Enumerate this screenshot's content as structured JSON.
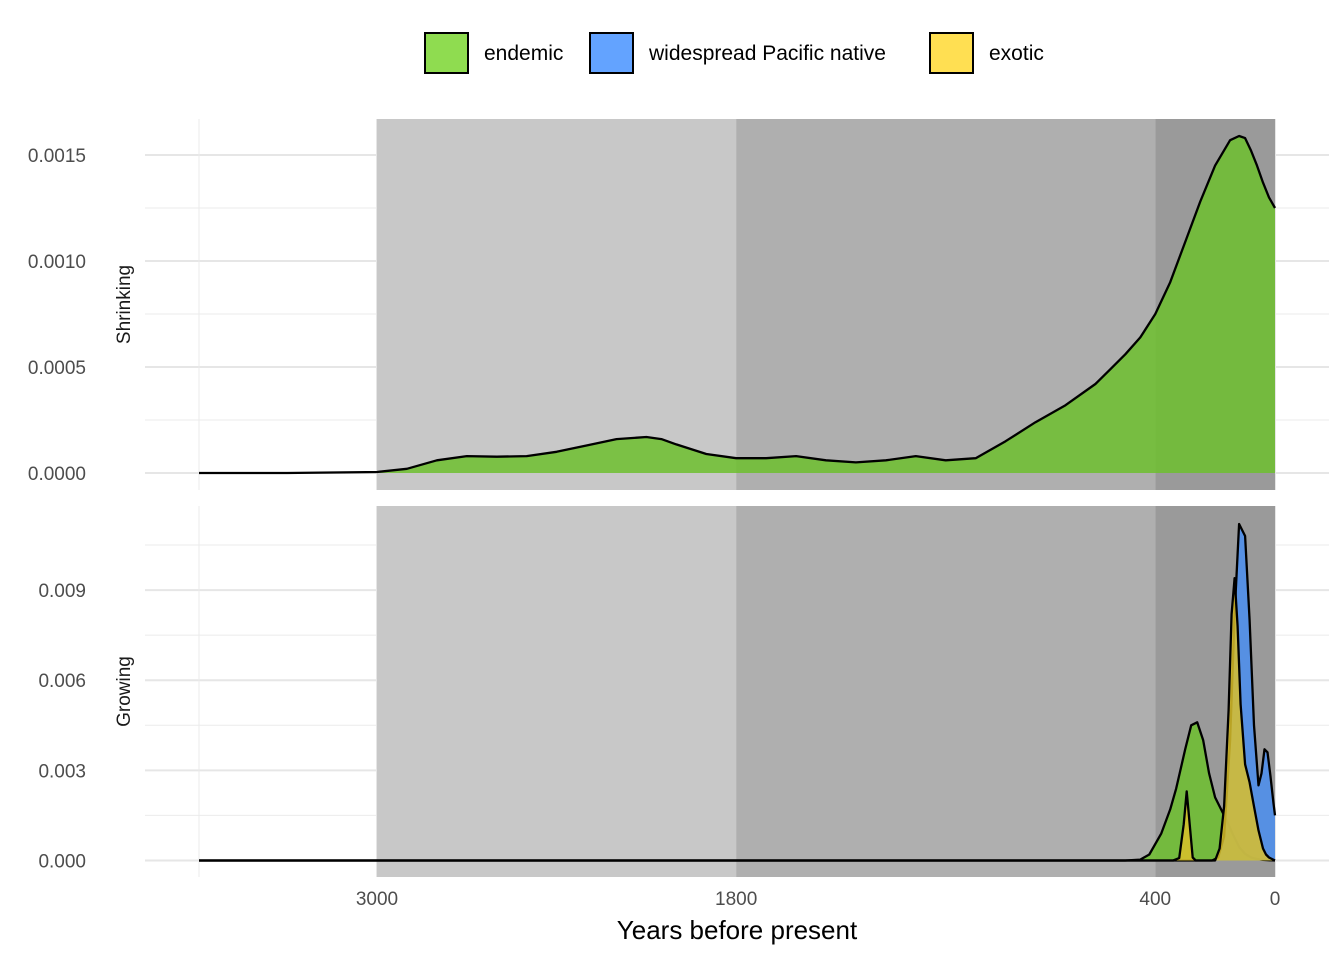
{
  "chart_data": {
    "type": "area",
    "subtype": "density",
    "xlabel": "Years before present",
    "x_reversed": true,
    "xlim": [
      3500,
      0
    ],
    "x_ticks": [
      3000,
      1800,
      400,
      0
    ],
    "grid": true,
    "legend_position": "top",
    "legend": [
      {
        "name": "endemic",
        "color": "#8fdc50"
      },
      {
        "name": "widespread Pacific native",
        "color": "#63a3ff"
      },
      {
        "name": "exotic",
        "color": "#ffdf52"
      }
    ],
    "background_bands": [
      {
        "from": 3000,
        "to": 1800,
        "color": "#c8c8c8"
      },
      {
        "from": 1800,
        "to": 400,
        "color": "#afafaf"
      },
      {
        "from": 400,
        "to": 0,
        "color": "#9a9a9a"
      }
    ],
    "panels": [
      {
        "label": "Shrinking",
        "ylim": [
          -8e-05,
          0.00167
        ],
        "y_ticks": [
          0,
          0.0005,
          0.001,
          0.0015
        ],
        "y_tick_labels": [
          "0.0000",
          "0.0005",
          "0.0010",
          "0.0015"
        ],
        "series": [
          {
            "name": "endemic",
            "color": "#6dbf2e",
            "x": [
              3600,
              3300,
              3000,
              2900,
              2800,
              2700,
              2600,
              2500,
              2400,
              2300,
              2200,
              2100,
              2050,
              2000,
              1900,
              1800,
              1700,
              1600,
              1500,
              1400,
              1300,
              1200,
              1100,
              1000,
              900,
              800,
              700,
              600,
              550,
              500,
              450,
              400,
              350,
              300,
              250,
              200,
              150,
              120,
              100,
              80,
              60,
              40,
              20,
              0
            ],
            "y": [
              0,
              0,
              5e-06,
              2e-05,
              6e-05,
              8e-05,
              7.7e-05,
              8e-05,
              0.0001,
              0.00013,
              0.00016,
              0.00017,
              0.00016,
              0.000135,
              9e-05,
              7e-05,
              7e-05,
              8e-05,
              6e-05,
              5e-05,
              6e-05,
              8e-05,
              6e-05,
              7e-05,
              0.00015,
              0.00024,
              0.00032,
              0.00042,
              0.00049,
              0.00056,
              0.00064,
              0.00075,
              0.0009,
              0.00109,
              0.00128,
              0.00145,
              0.00157,
              0.00159,
              0.00158,
              0.00152,
              0.00145,
              0.00137,
              0.0013,
              0.00125
            ]
          }
        ]
      },
      {
        "label": "Growing",
        "ylim": [
          -0.00055,
          0.0118
        ],
        "y_ticks": [
          0,
          0.003,
          0.006,
          0.009
        ],
        "y_tick_labels": [
          "0.000",
          "0.003",
          "0.006",
          "0.009"
        ],
        "series": [
          {
            "name": "endemic",
            "color": "#6dbf2e",
            "x": [
              3600,
              500,
              450,
              420,
              380,
              350,
              330,
              300,
              280,
              260,
              240,
              220,
              200,
              180,
              160,
              140,
              120,
              100,
              80,
              60,
              40,
              20,
              0
            ],
            "y": [
              0,
              0,
              3e-05,
              0.0002,
              0.0009,
              0.0017,
              0.0024,
              0.0037,
              0.0045,
              0.0046,
              0.004,
              0.0029,
              0.0021,
              0.0017,
              0.0013,
              0.00085,
              0.00045,
              0.00022,
              0.0001,
              5e-05,
              2e-05,
              1e-05,
              0
            ]
          },
          {
            "name": "widespread Pacific native",
            "color": "#4a8ef0",
            "x": [
              3600,
              210,
              190,
              170,
              150,
              135,
              120,
              100,
              85,
              70,
              55,
              45,
              35,
              25,
              15,
              5,
              0
            ],
            "y": [
              0,
              0,
              0.0001,
              0.0008,
              0.004,
              0.0082,
              0.0112,
              0.0108,
              0.008,
              0.0045,
              0.0025,
              0.0029,
              0.0037,
              0.0036,
              0.0028,
              0.0019,
              0.0015
            ]
          },
          {
            "name": "exotic",
            "color": "#d9c02a",
            "x": [
              3600,
              340,
              320,
              305,
              295,
              285,
              275,
              265,
              250,
              200,
              185,
              170,
              155,
              145,
              135,
              125,
              115,
              100,
              85,
              70,
              55,
              40,
              30,
              20,
              10,
              0
            ],
            "y": [
              0,
              0,
              8e-05,
              0.0012,
              0.0023,
              0.0012,
              0.0001,
              0,
              0,
              0,
              0.0004,
              0.0018,
              0.005,
              0.0082,
              0.0094,
              0.0078,
              0.0052,
              0.0032,
              0.0026,
              0.0018,
              0.001,
              0.0004,
              0.0002,
              0.0001,
              5e-05,
              0
            ]
          }
        ]
      }
    ]
  }
}
